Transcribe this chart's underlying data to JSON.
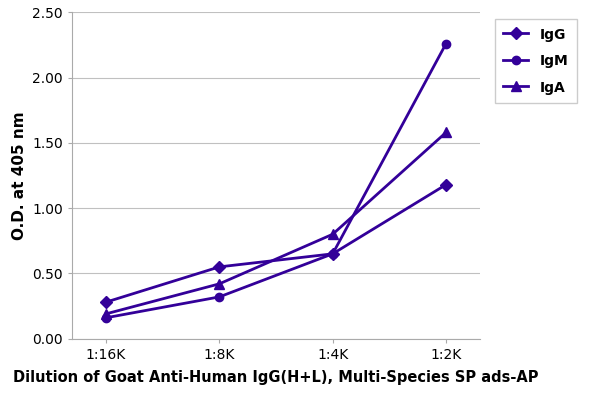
{
  "x_labels": [
    "1:16K",
    "1:8K",
    "1:4K",
    "1:2K"
  ],
  "x_positions": [
    0,
    1,
    2,
    3
  ],
  "series": [
    {
      "name": "IgG",
      "values": [
        0.28,
        0.55,
        0.65,
        1.18
      ],
      "color": "#330099",
      "marker": "D",
      "markersize": 6,
      "linewidth": 2.0
    },
    {
      "name": "IgM",
      "values": [
        0.16,
        0.32,
        0.65,
        2.26
      ],
      "color": "#330099",
      "marker": "o",
      "markersize": 6,
      "linewidth": 2.0
    },
    {
      "name": "IgA",
      "values": [
        0.19,
        0.42,
        0.8,
        1.58
      ],
      "color": "#330099",
      "marker": "^",
      "markersize": 7,
      "linewidth": 2.0
    }
  ],
  "ylabel": "O.D. at 405 nm",
  "xlabel": "Dilution of Goat Anti-Human IgG(H+L), Multi-Species SP ads-AP",
  "ylim": [
    0.0,
    2.5
  ],
  "yticks": [
    0.0,
    0.5,
    1.0,
    1.5,
    2.0,
    2.5
  ],
  "background_color": "#ffffff",
  "grid_color": "#c0c0c0",
  "ylabel_fontsize": 11,
  "xlabel_fontsize": 10.5,
  "tick_fontsize": 10,
  "legend_fontsize": 10
}
